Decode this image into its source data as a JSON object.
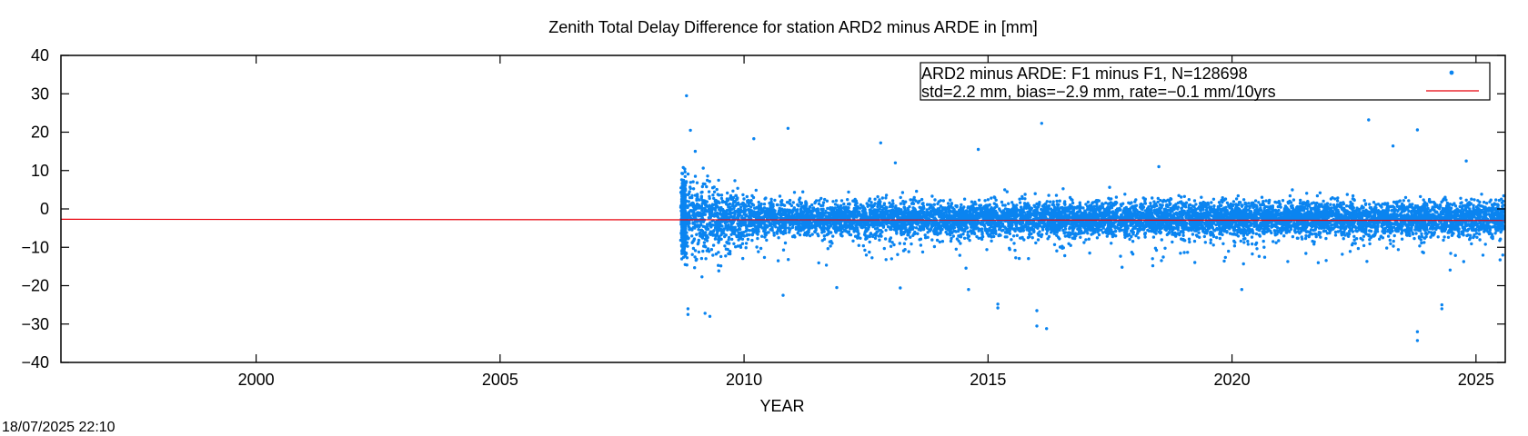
{
  "timestamp": "18/07/2025 22:10",
  "colors": {
    "points": "#0a84f0",
    "fit_line": "#e8000b",
    "axes": "#000000"
  },
  "chart_data": {
    "type": "scatter",
    "title": "Zenith Total Delay Difference for station ARD2 minus ARDE in [mm]",
    "xlabel": "YEAR",
    "ylabel": "",
    "xlim": [
      1996.0,
      2025.6
    ],
    "ylim": [
      -40,
      40
    ],
    "xticks": [
      2000,
      2005,
      2010,
      2015,
      2020,
      2025
    ],
    "yticks": [
      -40,
      -30,
      -20,
      -10,
      0,
      10,
      20,
      30,
      40
    ],
    "grid": false,
    "legend_position": "top-right",
    "legend": {
      "line1": "ARD2 minus ARDE: F1 minus F1, N=128698",
      "line2": "std=2.2 mm, bias=−2.9 mm, rate=−0.1 mm/10yrs"
    },
    "series": [
      {
        "name": "ARD2 minus ARDE: F1 minus F1, N=128698",
        "kind": "points",
        "data_start_year": 2008.7,
        "data_end_year": 2025.6,
        "n": 128698,
        "std": 2.2,
        "bias": -2.9,
        "outliers": [
          [
            2008.82,
            29.5
          ],
          [
            2008.9,
            20.5
          ],
          [
            2009.0,
            15.0
          ],
          [
            2010.2,
            18.3
          ],
          [
            2010.9,
            21.0
          ],
          [
            2012.8,
            17.2
          ],
          [
            2013.1,
            12.0
          ],
          [
            2014.8,
            15.5
          ],
          [
            2016.1,
            22.3
          ],
          [
            2018.5,
            11.0
          ],
          [
            2022.8,
            23.2
          ],
          [
            2023.3,
            16.4
          ],
          [
            2023.8,
            20.6
          ],
          [
            2024.8,
            12.5
          ],
          [
            2008.85,
            -26.0
          ],
          [
            2008.85,
            -27.5
          ],
          [
            2009.3,
            -28.0
          ],
          [
            2009.2,
            -27.2
          ],
          [
            2010.8,
            -22.5
          ],
          [
            2011.9,
            -20.5
          ],
          [
            2013.2,
            -20.6
          ],
          [
            2014.6,
            -21.0
          ],
          [
            2015.2,
            -24.8
          ],
          [
            2015.2,
            -25.8
          ],
          [
            2016.0,
            -30.5
          ],
          [
            2016.2,
            -31.2
          ],
          [
            2016.0,
            -26.5
          ],
          [
            2023.8,
            -32.0
          ],
          [
            2023.8,
            -34.3
          ],
          [
            2024.3,
            -25.0
          ],
          [
            2024.3,
            -26.0
          ],
          [
            2020.2,
            -21.0
          ]
        ]
      },
      {
        "name": "",
        "kind": "line",
        "x": [
          1996.0,
          2025.6
        ],
        "y": [
          -2.7,
          -3.0
        ]
      }
    ]
  }
}
